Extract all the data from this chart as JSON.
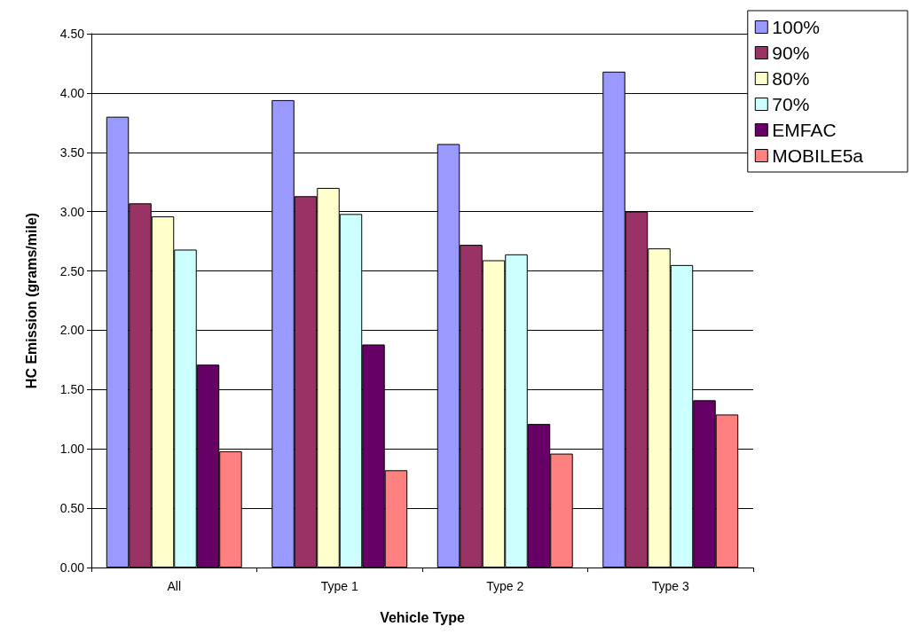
{
  "chart_data": {
    "type": "bar",
    "xlabel": "Vehicle Type",
    "ylabel": "HC Emission (grams/mile)",
    "categories": [
      "All",
      "Type 1",
      "Type 2",
      "Type 3"
    ],
    "series": [
      {
        "name": "100%",
        "color": "#9999ff",
        "values": [
          3.8,
          3.94,
          3.57,
          4.18
        ]
      },
      {
        "name": "90%",
        "color": "#993366",
        "values": [
          3.07,
          3.13,
          2.72,
          3.0
        ]
      },
      {
        "name": "80%",
        "color": "#ffffcc",
        "values": [
          2.96,
          3.2,
          2.59,
          2.69
        ]
      },
      {
        "name": "70%",
        "color": "#ccffff",
        "values": [
          2.68,
          2.98,
          2.64,
          2.55
        ]
      },
      {
        "name": "EMFAC",
        "color": "#660066",
        "values": [
          1.71,
          1.88,
          1.21,
          1.41
        ]
      },
      {
        "name": "MOBILE5a",
        "color": "#ff8080",
        "values": [
          0.98,
          0.82,
          0.96,
          1.29
        ]
      }
    ],
    "ylim": [
      0,
      4.5
    ],
    "yticks": [
      {
        "value": 0,
        "label": "0.00"
      },
      {
        "value": 0.5,
        "label": "0.50"
      },
      {
        "value": 1,
        "label": "1.00"
      },
      {
        "value": 1.5,
        "label": "1.50"
      },
      {
        "value": 2,
        "label": "2.00"
      },
      {
        "value": 2.5,
        "label": "2.50"
      },
      {
        "value": 3,
        "label": "3.00"
      },
      {
        "value": 3.5,
        "label": "3.50"
      },
      {
        "value": 4,
        "label": "4.00"
      },
      {
        "value": 4.5,
        "label": "4.50"
      }
    ],
    "grid": "y",
    "legend": "top right"
  }
}
